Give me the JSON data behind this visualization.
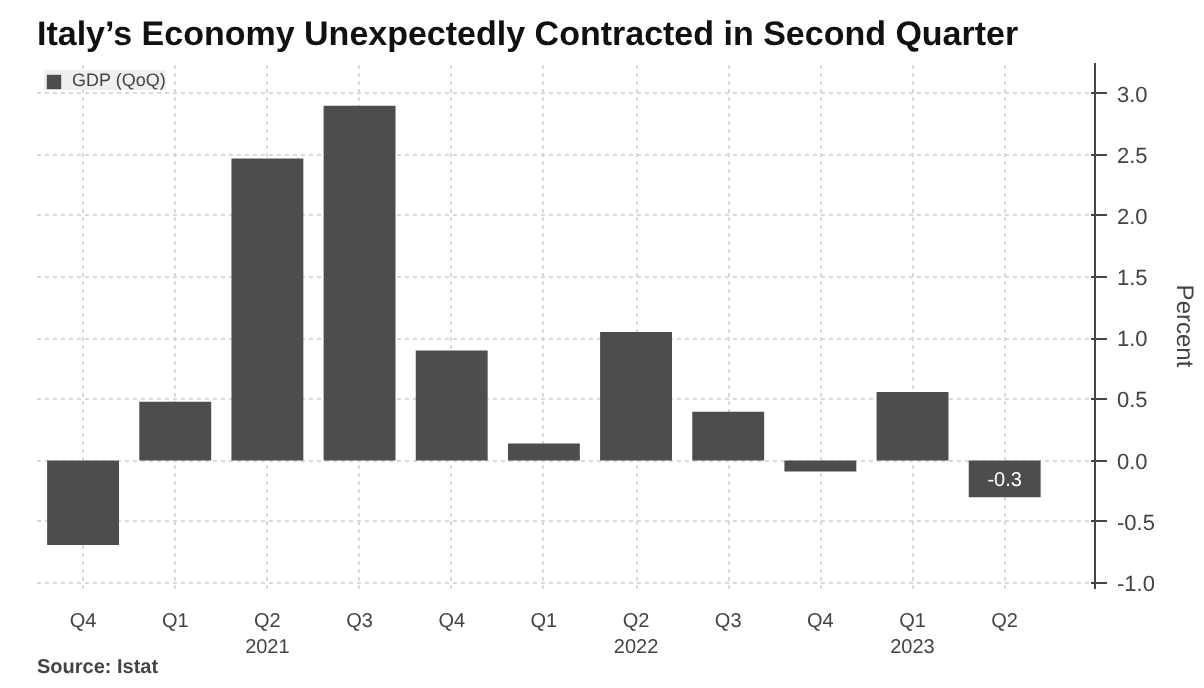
{
  "chart_data": {
    "type": "bar",
    "title": "Italy’s Economy Unexpectedly Contracted in Second Quarter",
    "categories": [
      "Q4",
      "Q1",
      "Q2\n2021",
      "Q3",
      "Q4",
      "Q1",
      "Q2\n2022",
      "Q3",
      "Q4",
      "Q1\n2023",
      "Q2"
    ],
    "series": [
      {
        "name": "GDP (QoQ)",
        "color": "#4d4d4d",
        "values": [
          -0.69,
          0.48,
          2.47,
          2.9,
          0.9,
          0.14,
          1.05,
          0.4,
          -0.09,
          0.56,
          -0.3
        ],
        "value_labels": [
          null,
          null,
          null,
          null,
          null,
          null,
          null,
          null,
          null,
          null,
          "-0.3"
        ]
      }
    ],
    "ylabel": "Percent",
    "ylim": [
      -1.05,
      3.25
    ],
    "yticks": [
      {
        "value": -1,
        "label": "-1.0"
      },
      -0.5,
      {
        "value": 0,
        "label": "0.0"
      },
      0.5,
      {
        "value": 1,
        "label": "1.0"
      },
      1.5,
      {
        "value": 2,
        "label": "2.0"
      },
      2.5,
      {
        "value": 3,
        "label": "3.0"
      }
    ],
    "grid": true,
    "legend": "top left",
    "annotations": [
      "Source: Istat"
    ]
  }
}
